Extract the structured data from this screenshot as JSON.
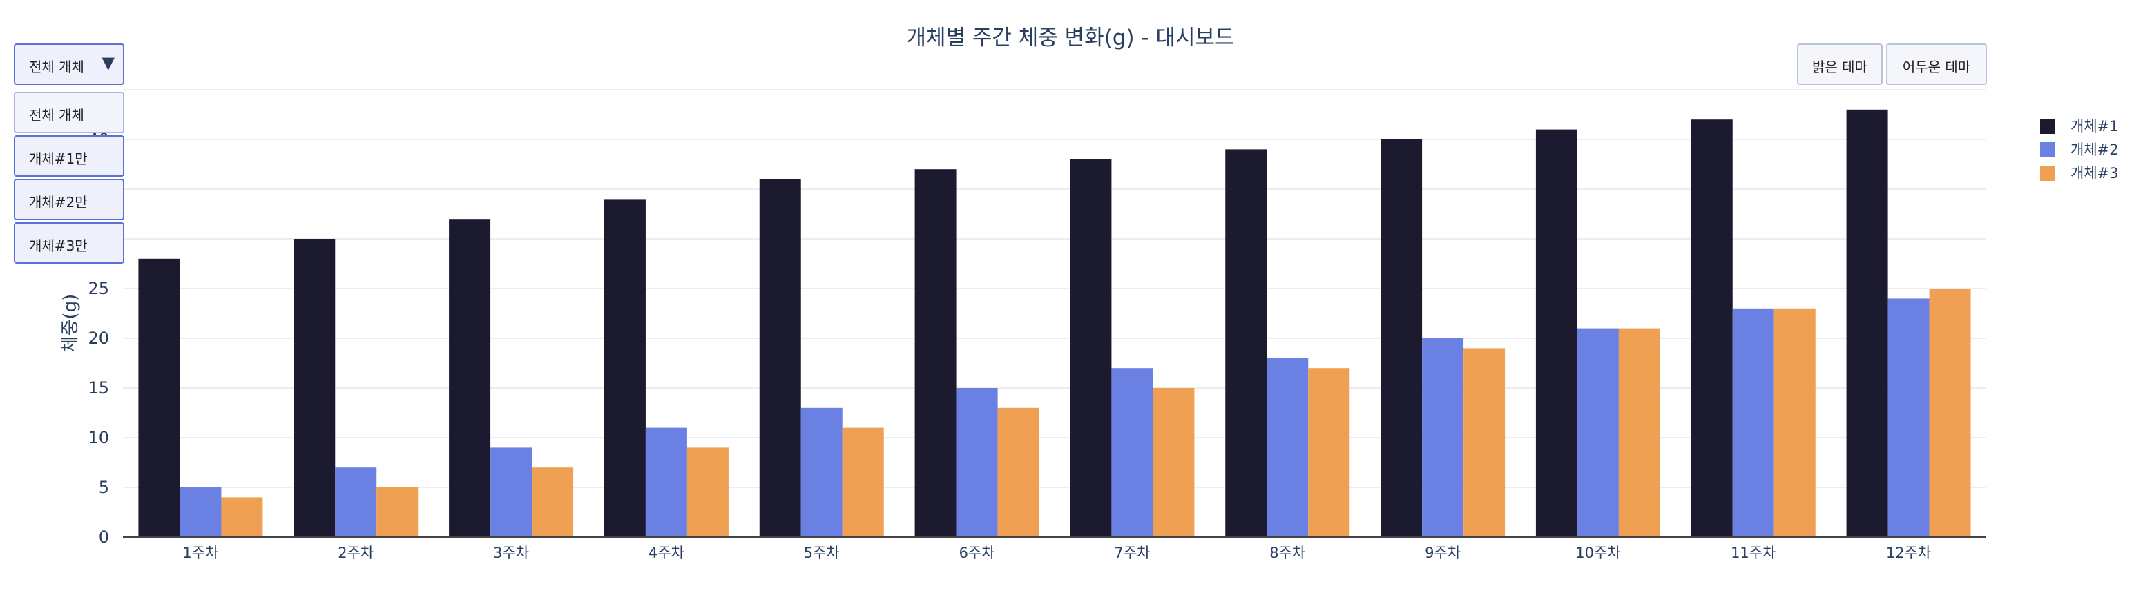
{
  "chart_data": {
    "type": "bar",
    "title": "개체별 주간 체중 변화(g) - 대시보드",
    "xlabel": "",
    "ylabel": "체중(g)",
    "categories": [
      "1주차",
      "2주차",
      "3주차",
      "4주차",
      "5주차",
      "6주차",
      "7주차",
      "8주차",
      "9주차",
      "10주차",
      "11주차",
      "12주차"
    ],
    "series": [
      {
        "name": "개체#1",
        "color": "#1c1a2e",
        "values": [
          28,
          30,
          32,
          34,
          36,
          37,
          38,
          39,
          40,
          41,
          42,
          43
        ]
      },
      {
        "name": "개체#2",
        "color": "#6b80e3",
        "values": [
          5,
          7,
          9,
          11,
          13,
          15,
          17,
          18,
          20,
          21,
          23,
          24
        ]
      },
      {
        "name": "개체#3",
        "color": "#f0a052",
        "values": [
          4,
          5,
          7,
          9,
          11,
          13,
          15,
          17,
          19,
          21,
          23,
          25
        ]
      }
    ],
    "ylim": [
      0,
      45
    ],
    "yticks": [
      0,
      5,
      10,
      15,
      20,
      25,
      30,
      35,
      40
    ],
    "grid": true,
    "legend_position": "right"
  },
  "controls": {
    "dropdown": {
      "selected": "전체 개체",
      "options": [
        "전체 개체",
        "개체#1만",
        "개체#2만",
        "개체#3만"
      ]
    },
    "theme_buttons": {
      "light": "밝은 테마",
      "dark": "어두운 테마"
    }
  }
}
